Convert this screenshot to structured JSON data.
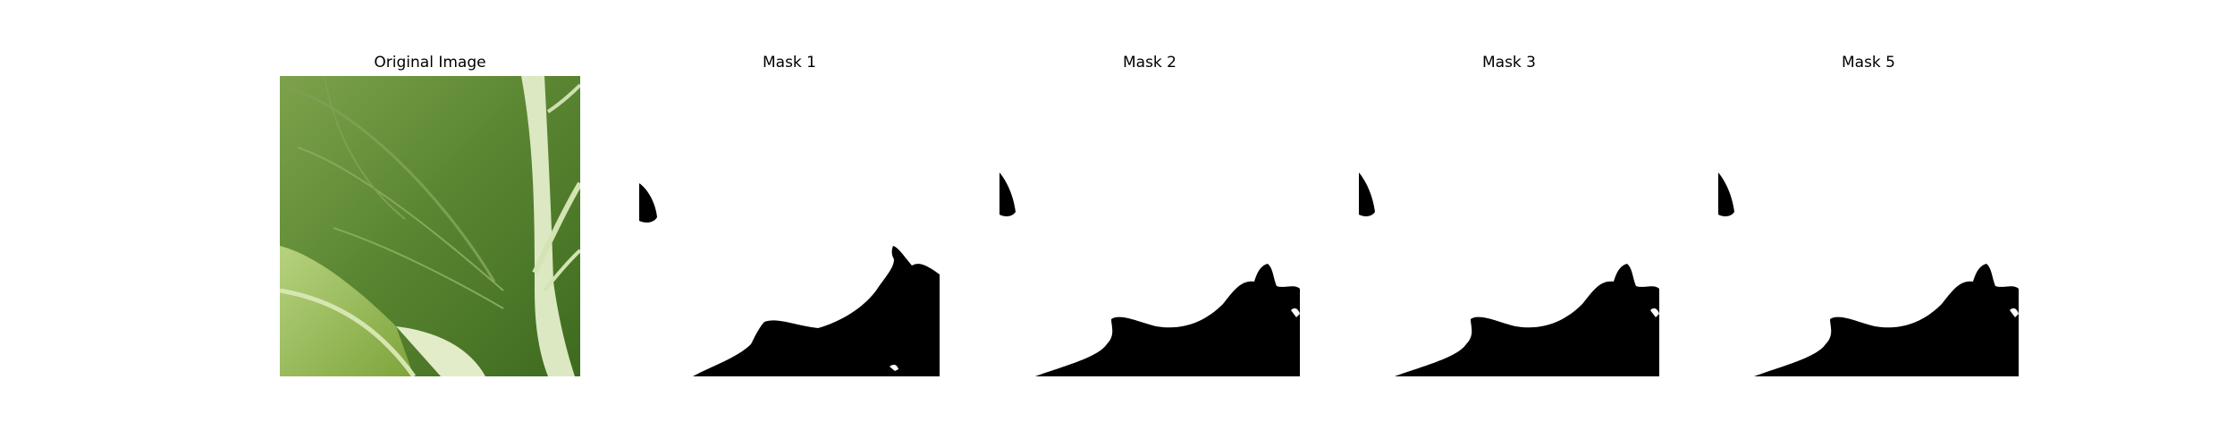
{
  "figure": {
    "background": "#ffffff",
    "panels": [
      {
        "title": "Original Image",
        "kind": "photo",
        "subject": "green leaf close-up"
      },
      {
        "title": "Mask 1",
        "kind": "binary-mask",
        "fill": "#000000"
      },
      {
        "title": "Mask 2",
        "kind": "binary-mask",
        "fill": "#000000"
      },
      {
        "title": "Mask 3",
        "kind": "binary-mask",
        "fill": "#000000"
      },
      {
        "title": "Mask 5",
        "kind": "binary-mask",
        "fill": "#000000"
      }
    ]
  },
  "colors": {
    "leaf_dark": "#3f6a22",
    "leaf_mid": "#5e8a36",
    "leaf_light": "#a9c77a",
    "vein": "#d7e6b8",
    "stem": "#e3edd0",
    "mask": "#000000"
  }
}
